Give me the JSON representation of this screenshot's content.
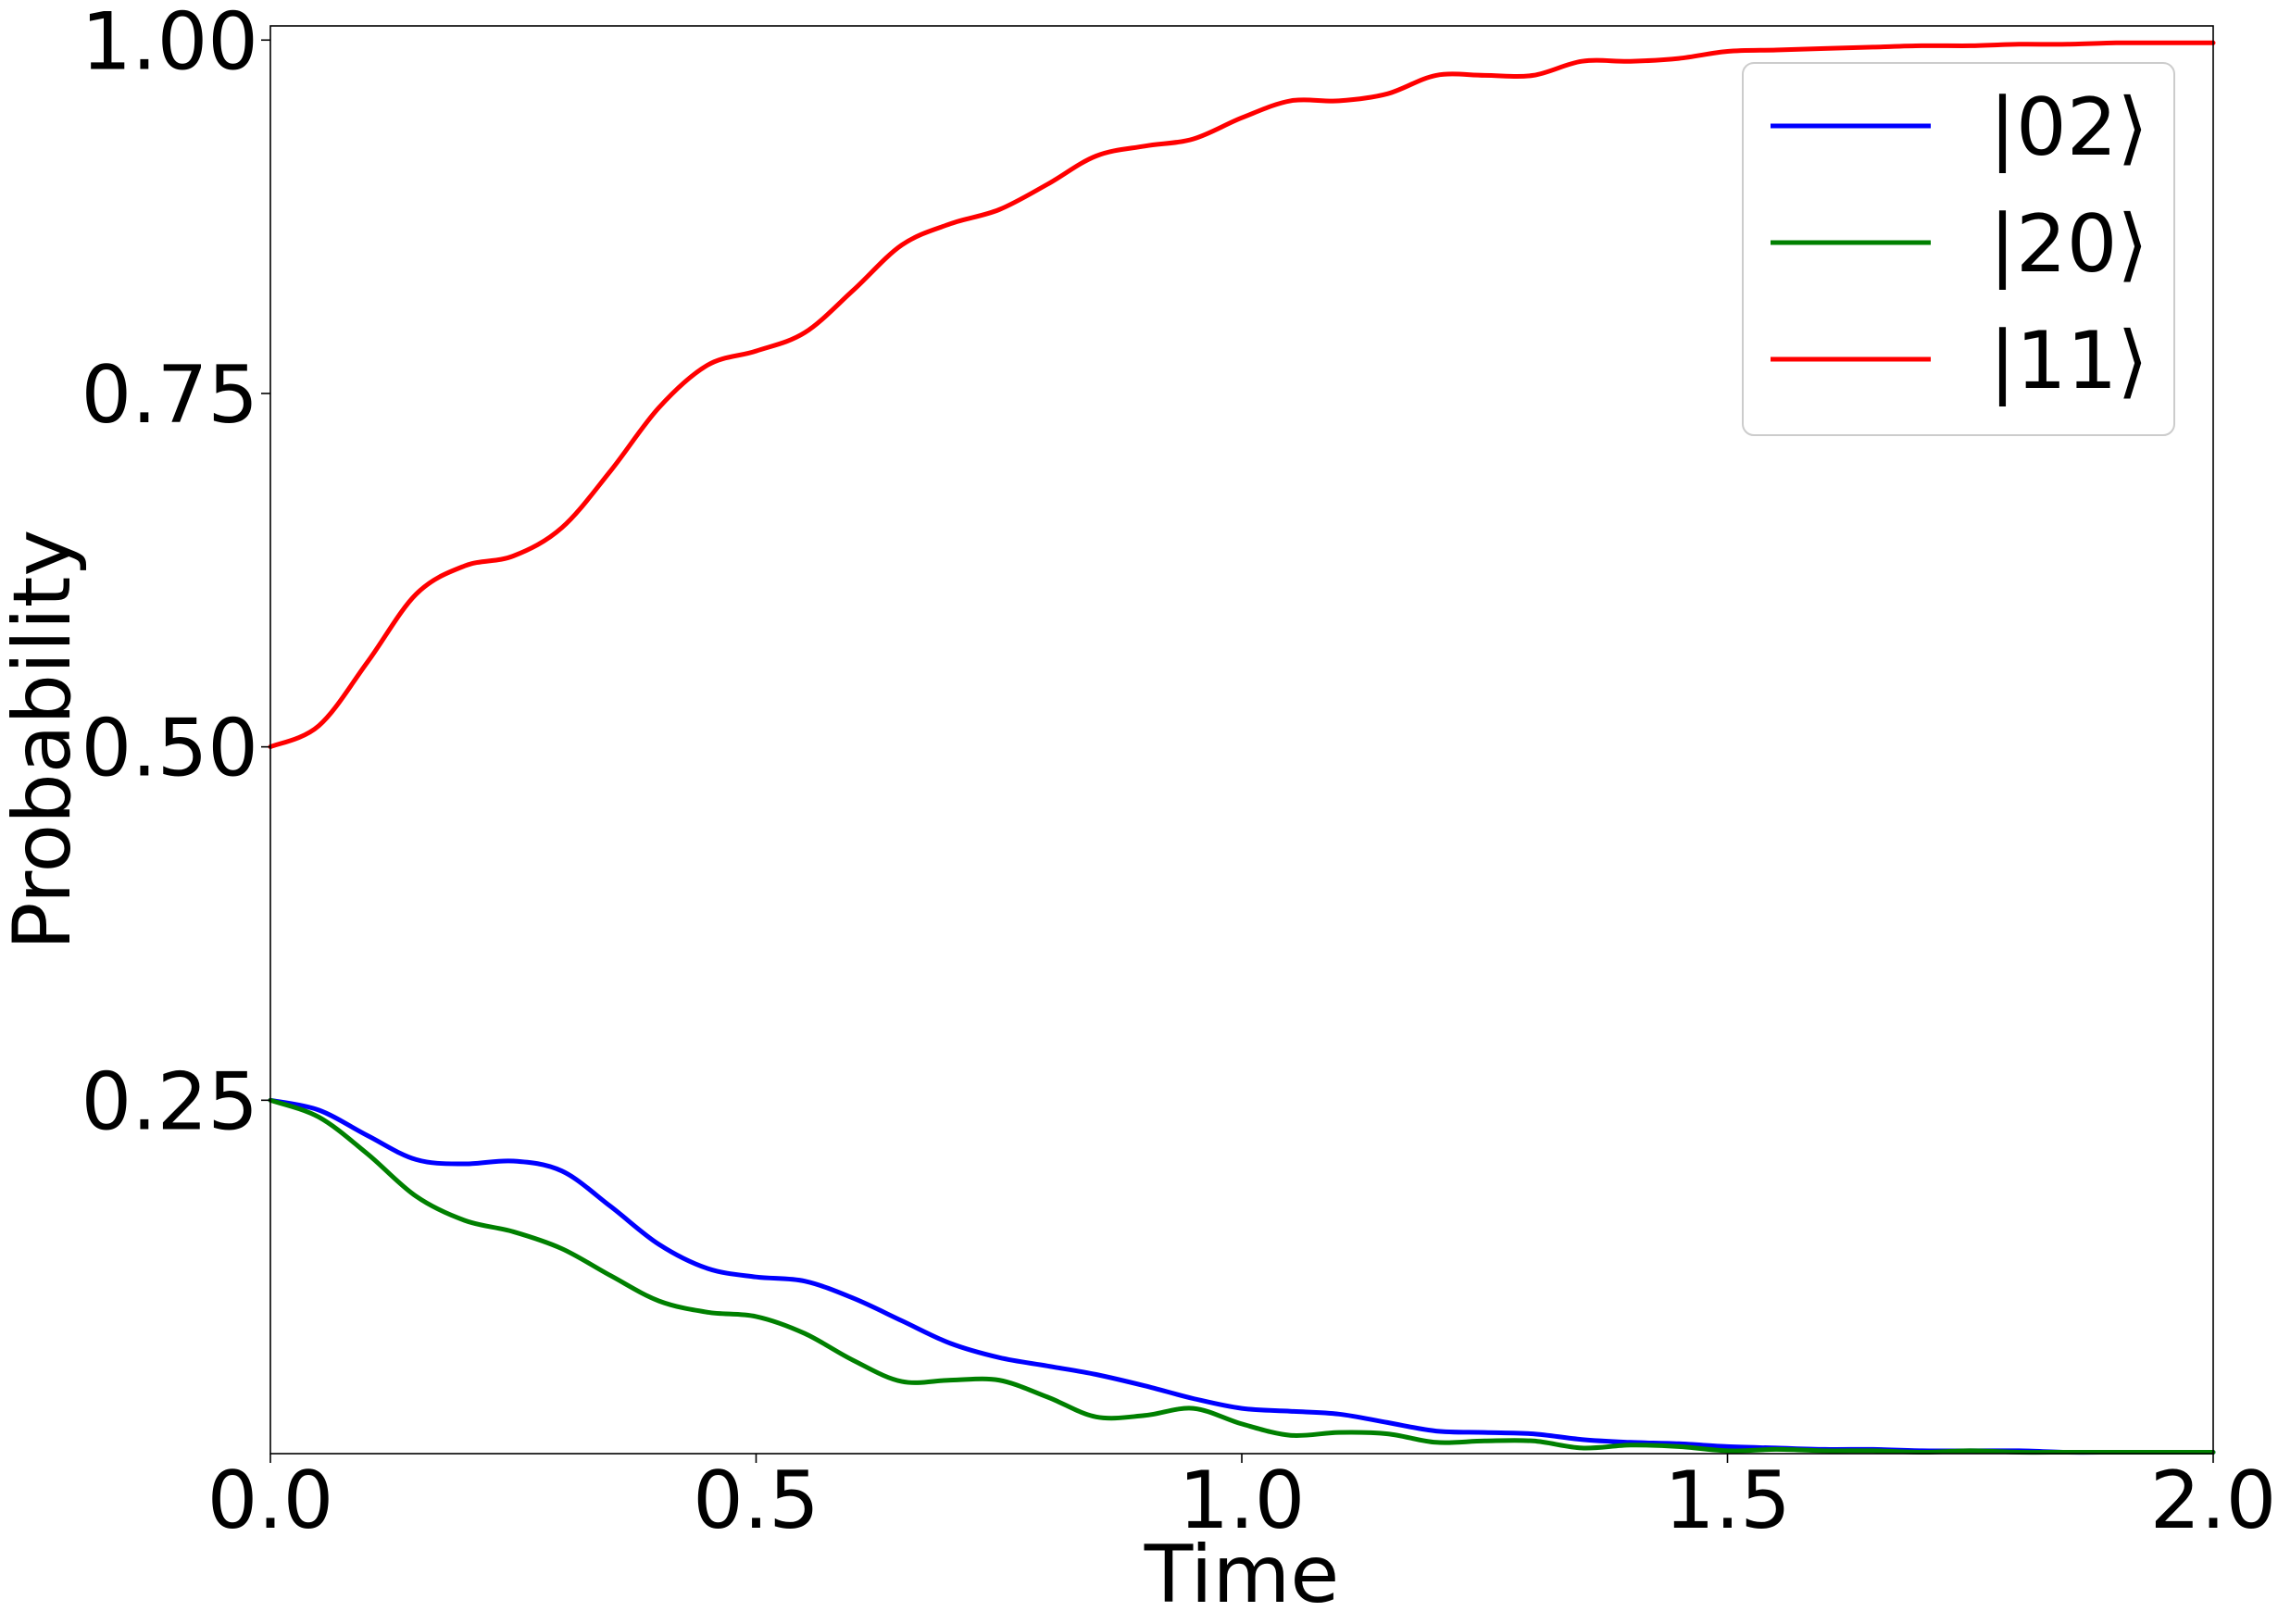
{
  "chart_data": {
    "type": "line",
    "title": "",
    "xlabel": "Time",
    "ylabel": "Probability",
    "xlim": [
      0.0,
      2.0
    ],
    "ylim": [
      0.0,
      1.01
    ],
    "xticks": [
      0.0,
      0.5,
      1.0,
      1.5,
      2.0
    ],
    "xtick_labels": [
      "0.0",
      "0.5",
      "1.0",
      "1.5",
      "2.0"
    ],
    "yticks": [
      0.25,
      0.5,
      0.75,
      1.0
    ],
    "ytick_labels": [
      "0.25",
      "0.50",
      "0.75",
      "1.00"
    ],
    "grid": false,
    "legend": {
      "placement": "top-right"
    },
    "series": [
      {
        "name": "|02⟩",
        "color": "#0000ff",
        "x": [
          0.0,
          0.05,
          0.1,
          0.15,
          0.2,
          0.25,
          0.3,
          0.35,
          0.4,
          0.45,
          0.5,
          0.55,
          0.6,
          0.65,
          0.7,
          0.75,
          0.8,
          0.85,
          0.9,
          0.95,
          1.0,
          1.05,
          1.1,
          1.15,
          1.2,
          1.25,
          1.3,
          1.35,
          1.4,
          1.45,
          1.5,
          1.55,
          1.6,
          1.65,
          1.7,
          1.75,
          1.8,
          1.85,
          1.9,
          1.95,
          2.0
        ],
        "y": [
          0.25,
          0.243,
          0.225,
          0.208,
          0.205,
          0.207,
          0.2,
          0.175,
          0.148,
          0.131,
          0.125,
          0.122,
          0.11,
          0.094,
          0.078,
          0.068,
          0.062,
          0.056,
          0.048,
          0.039,
          0.032,
          0.03,
          0.028,
          0.022,
          0.016,
          0.015,
          0.014,
          0.01,
          0.008,
          0.007,
          0.005,
          0.004,
          0.003,
          0.003,
          0.002,
          0.002,
          0.002,
          0.001,
          0.001,
          0.001,
          0.001
        ]
      },
      {
        "name": "|20⟩",
        "color": "#008000",
        "x": [
          0.0,
          0.05,
          0.1,
          0.15,
          0.2,
          0.25,
          0.3,
          0.35,
          0.4,
          0.45,
          0.5,
          0.55,
          0.6,
          0.65,
          0.7,
          0.75,
          0.8,
          0.85,
          0.9,
          0.95,
          1.0,
          1.05,
          1.1,
          1.15,
          1.2,
          1.25,
          1.3,
          1.35,
          1.4,
          1.45,
          1.5,
          1.55,
          1.6,
          1.65,
          1.7,
          1.75,
          1.8,
          1.85,
          1.9,
          1.95,
          2.0
        ],
        "y": [
          0.25,
          0.238,
          0.212,
          0.182,
          0.165,
          0.157,
          0.145,
          0.126,
          0.108,
          0.1,
          0.097,
          0.085,
          0.066,
          0.051,
          0.052,
          0.052,
          0.04,
          0.026,
          0.027,
          0.032,
          0.021,
          0.013,
          0.015,
          0.014,
          0.008,
          0.009,
          0.009,
          0.004,
          0.006,
          0.005,
          0.002,
          0.003,
          0.002,
          0.002,
          0.001,
          0.002,
          0.001,
          0.001,
          0.001,
          0.001,
          0.001
        ]
      },
      {
        "name": "|11⟩",
        "color": "#ff0000",
        "x": [
          0.0,
          0.05,
          0.1,
          0.15,
          0.2,
          0.25,
          0.3,
          0.35,
          0.4,
          0.45,
          0.5,
          0.55,
          0.6,
          0.65,
          0.7,
          0.75,
          0.8,
          0.85,
          0.9,
          0.95,
          1.0,
          1.05,
          1.1,
          1.15,
          1.2,
          1.25,
          1.3,
          1.35,
          1.4,
          1.45,
          1.5,
          1.55,
          1.6,
          1.65,
          1.7,
          1.75,
          1.8,
          1.85,
          1.9,
          1.95,
          2.0
        ],
        "y": [
          0.5,
          0.515,
          0.56,
          0.608,
          0.628,
          0.635,
          0.655,
          0.695,
          0.74,
          0.77,
          0.78,
          0.793,
          0.823,
          0.855,
          0.87,
          0.88,
          0.898,
          0.918,
          0.925,
          0.93,
          0.945,
          0.957,
          0.957,
          0.962,
          0.975,
          0.975,
          0.975,
          0.985,
          0.985,
          0.987,
          0.992,
          0.993,
          0.994,
          0.995,
          0.996,
          0.996,
          0.997,
          0.997,
          0.998,
          0.998,
          0.998
        ]
      }
    ]
  }
}
